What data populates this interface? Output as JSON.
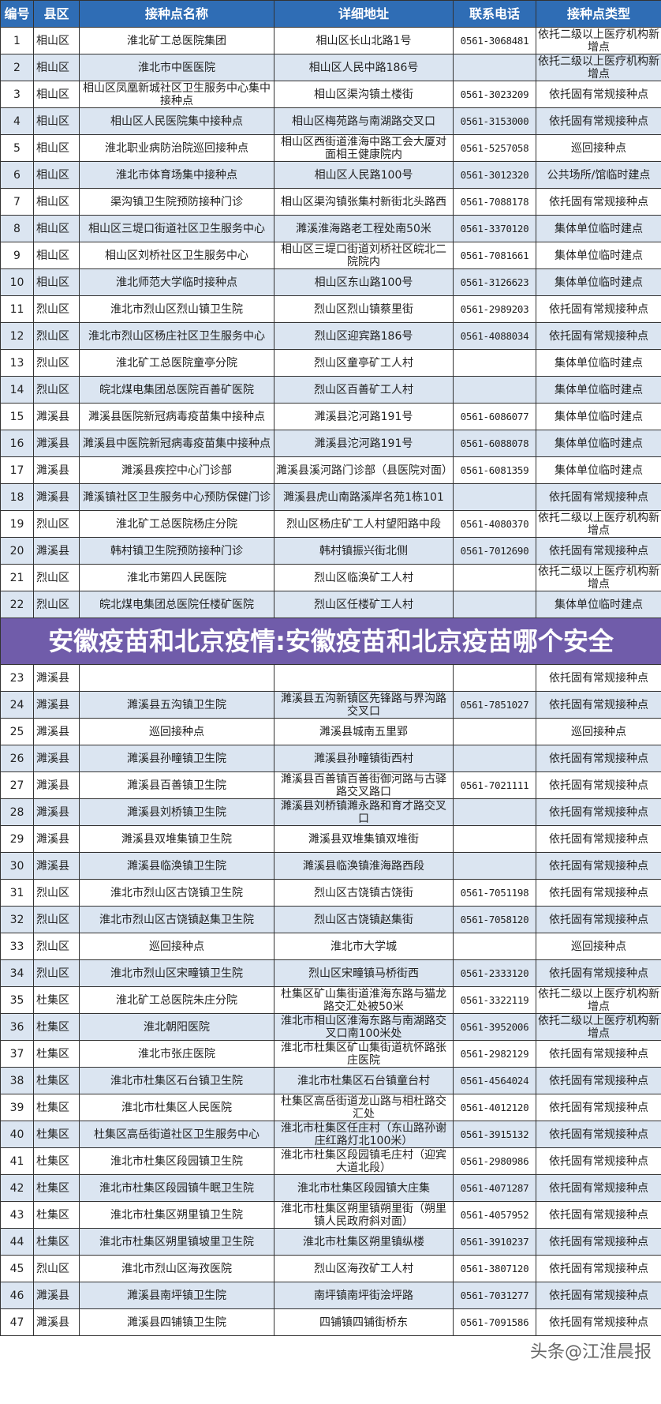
{
  "table": {
    "headers": [
      "编号",
      "县区",
      "接种点名称",
      "详细地址",
      "联系电话",
      "接种点类型"
    ],
    "rows": [
      [
        "1",
        "相山区",
        "淮北矿工总医院集团",
        "相山区长山北路1号",
        "0561-3068481",
        "依托二级以上医疗机构新增点"
      ],
      [
        "2",
        "相山区",
        "淮北市中医医院",
        "相山区人民中路186号",
        "",
        "依托二级以上医疗机构新增点"
      ],
      [
        "3",
        "相山区",
        "相山区凤凰新城社区卫生服务中心集中接种点",
        "相山区渠沟镇土楼街",
        "0561-3023209",
        "依托固有常规接种点"
      ],
      [
        "4",
        "相山区",
        "相山区人民医院集中接种点",
        "相山区梅苑路与南湖路交叉口",
        "0561-3153000",
        "依托固有常规接种点"
      ],
      [
        "5",
        "相山区",
        "淮北职业病防治院巡回接种点",
        "相山区西街道淮海中路工会大厦对面相王健康院内",
        "0561-5257058",
        "巡回接种点"
      ],
      [
        "6",
        "相山区",
        "淮北市体育场集中接种点",
        "相山区人民路100号",
        "0561-3012320",
        "公共场所/馆临时建点"
      ],
      [
        "7",
        "相山区",
        "渠沟镇卫生院预防接种门诊",
        "相山区渠沟镇张集村新街北头路西",
        "0561-7088178",
        "依托固有常规接种点"
      ],
      [
        "8",
        "相山区",
        "相山区三堤口街道社区卫生服务中心",
        "濉溪淮海路老工程处南50米",
        "0561-3370120",
        "集体单位临时建点"
      ],
      [
        "9",
        "相山区",
        "相山区刘桥社区卫生服务中心",
        "相山区三堤口街道刘桥社区皖北二院院内",
        "0561-7081661",
        "集体单位临时建点"
      ],
      [
        "10",
        "相山区",
        "淮北师范大学临时接种点",
        "相山区东山路100号",
        "0561-3126623",
        "集体单位临时建点"
      ],
      [
        "11",
        "烈山区",
        "淮北市烈山区烈山镇卫生院",
        "烈山区烈山镇蔡里街",
        "0561-2989203",
        "依托固有常规接种点"
      ],
      [
        "12",
        "烈山区",
        "淮北市烈山区杨庄社区卫生服务中心",
        "烈山区迎宾路186号",
        "0561-4088034",
        "依托固有常规接种点"
      ],
      [
        "13",
        "烈山区",
        "淮北矿工总医院童亭分院",
        "烈山区童亭矿工人村",
        "",
        "集体单位临时建点"
      ],
      [
        "14",
        "烈山区",
        "皖北煤电集团总医院百善矿医院",
        "烈山区百善矿工人村",
        "",
        "集体单位临时建点"
      ],
      [
        "15",
        "濉溪县",
        "濉溪县医院新冠病毒疫苗集中接种点",
        "濉溪县沱河路191号",
        "0561-6086077",
        "集体单位临时建点"
      ],
      [
        "16",
        "濉溪县",
        "濉溪县中医院新冠病毒疫苗集中接种点",
        "濉溪县沱河路191号",
        "0561-6088078",
        "集体单位临时建点"
      ],
      [
        "17",
        "濉溪县",
        "濉溪县疾控中心门诊部",
        "濉溪县溪河路门诊部（县医院对面）",
        "0561-6081359",
        "集体单位临时建点"
      ],
      [
        "18",
        "濉溪县",
        "濉溪镇社区卫生服务中心预防保健门诊",
        "濉溪县虎山南路溪岸名苑1栋101",
        "",
        "依托固有常规接种点"
      ],
      [
        "19",
        "烈山区",
        "淮北矿工总医院杨庄分院",
        "烈山区杨庄矿工人村望阳路中段",
        "0561-4080370",
        "依托二级以上医疗机构新增点"
      ],
      [
        "20",
        "濉溪县",
        "韩村镇卫生院预防接种门诊",
        "韩村镇振兴街北侧",
        "0561-7012690",
        "依托固有常规接种点"
      ],
      [
        "21",
        "烈山区",
        "淮北市第四人民医院",
        "烈山区临涣矿工人村",
        "",
        "依托二级以上医疗机构新增点"
      ],
      [
        "22",
        "烈山区",
        "皖北煤电集团总医院任楼矿医院",
        "烈山区任楼矿工人村",
        "",
        "集体单位临时建点"
      ],
      [
        "23",
        "濉溪县",
        "",
        "",
        "",
        "依托固有常规接种点"
      ],
      [
        "24",
        "濉溪县",
        "濉溪县五沟镇卫生院",
        "濉溪县五沟新镇区先锋路与界沟路交叉口",
        "0561-7851027",
        "依托固有常规接种点"
      ],
      [
        "25",
        "濉溪县",
        "巡回接种点",
        "濉溪县城南五里郢",
        "",
        "巡回接种点"
      ],
      [
        "26",
        "濉溪县",
        "濉溪县孙疃镇卫生院",
        "濉溪县孙疃镇街西村",
        "",
        "依托固有常规接种点"
      ],
      [
        "27",
        "濉溪县",
        "濉溪县百善镇卫生院",
        "濉溪县百善镇百善街御河路与古驿路交叉路口",
        "0561-7021111",
        "依托固有常规接种点"
      ],
      [
        "28",
        "濉溪县",
        "濉溪县刘桥镇卫生院",
        "濉溪县刘桥镇濉永路和育才路交叉口",
        "",
        "依托固有常规接种点"
      ],
      [
        "29",
        "濉溪县",
        "濉溪县双堆集镇卫生院",
        "濉溪县双堆集镇双堆街",
        "",
        "依托固有常规接种点"
      ],
      [
        "30",
        "濉溪县",
        "濉溪县临涣镇卫生院",
        "濉溪县临涣镇淮海路西段",
        "",
        "依托固有常规接种点"
      ],
      [
        "31",
        "烈山区",
        "淮北市烈山区古饶镇卫生院",
        "烈山区古饶镇古饶街",
        "0561-7051198",
        "依托固有常规接种点"
      ],
      [
        "32",
        "烈山区",
        "淮北市烈山区古饶镇赵集卫生院",
        "烈山区古饶镇赵集街",
        "0561-7058120",
        "依托固有常规接种点"
      ],
      [
        "33",
        "烈山区",
        "巡回接种点",
        "淮北市大学城",
        "",
        "巡回接种点"
      ],
      [
        "34",
        "烈山区",
        "淮北市烈山区宋疃镇卫生院",
        "烈山区宋疃镇马桥街西",
        "0561-2333120",
        "依托固有常规接种点"
      ],
      [
        "35",
        "杜集区",
        "淮北矿工总医院朱庄分院",
        "杜集区矿山集街道淮海东路与猫龙路交汇处被50米",
        "0561-3322119",
        "依托二级以上医疗机构新增点"
      ],
      [
        "36",
        "杜集区",
        "淮北朝阳医院",
        "淮北市相山区淮海东路与南湖路交叉口南100米处",
        "0561-3952006",
        "依托二级以上医疗机构新增点"
      ],
      [
        "37",
        "杜集区",
        "淮北市张庄医院",
        "淮北市杜集区矿山集街道杭怀路张庄医院",
        "0561-2982129",
        "依托固有常规接种点"
      ],
      [
        "38",
        "杜集区",
        "淮北市杜集区石台镇卫生院",
        "淮北市杜集区石台镇童台村",
        "0561-4564024",
        "依托固有常规接种点"
      ],
      [
        "39",
        "杜集区",
        "淮北市杜集区人民医院",
        "杜集区高岳街道龙山路与相杜路交汇处",
        "0561-4012120",
        "依托固有常规接种点"
      ],
      [
        "40",
        "杜集区",
        "杜集区高岳街道社区卫生服务中心",
        "淮北市杜集区任庄村（东山路孙谢庄红路灯北100米）",
        "0561-3915132",
        "依托固有常规接种点"
      ],
      [
        "41",
        "杜集区",
        "淮北市杜集区段园镇卫生院",
        "淮北市杜集区段园镇毛庄村（迎宾大道北段）",
        "0561-2980986",
        "依托固有常规接种点"
      ],
      [
        "42",
        "杜集区",
        "淮北市杜集区段园镇牛眠卫生院",
        "淮北市杜集区段园镇大庄集",
        "0561-4071287",
        "依托固有常规接种点"
      ],
      [
        "43",
        "杜集区",
        "淮北市杜集区朔里镇卫生院",
        "淮北市杜集区朔里镇朔里街（朔里镇人民政府斜对面）",
        "0561-4057952",
        "依托固有常规接种点"
      ],
      [
        "44",
        "杜集区",
        "淮北市杜集区朔里镇坡里卫生院",
        "淮北市杜集区朔里镇纵楼",
        "0561-3910237",
        "依托固有常规接种点"
      ],
      [
        "45",
        "烈山区",
        "淮北市烈山区海孜医院",
        "烈山区海孜矿工人村",
        "0561-3807120",
        "依托固有常规接种点"
      ],
      [
        "46",
        "濉溪县",
        "濉溪县南坪镇卫生院",
        "南坪镇南坪街浍坪路",
        "0561-7031277",
        "依托固有常规接种点"
      ],
      [
        "47",
        "濉溪县",
        "濉溪县四铺镇卫生院",
        "四铺镇四铺街桥东",
        "0561-7091586",
        "依托固有常规接种点"
      ]
    ]
  },
  "overlay": {
    "title": "安徽疫苗和北京疫情:安徽疫苗和北京疫苗哪个安全"
  },
  "watermark": "头条@江淮晨报",
  "colors": {
    "header_bg": "#2f6db5",
    "alt_row_bg": "#dbe5f1",
    "overlay_bg": "#705caa"
  }
}
